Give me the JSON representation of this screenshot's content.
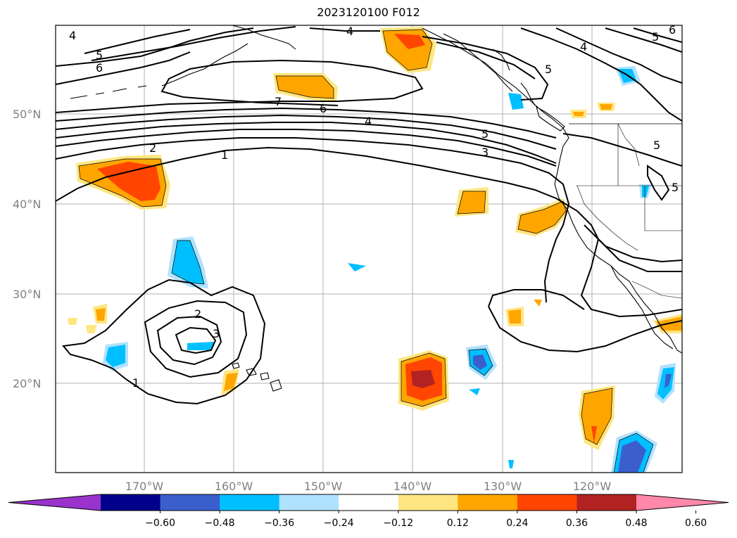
{
  "title": "2023120100 F012",
  "latitude_labels": [
    "50°N",
    "40°N",
    "30°N",
    "20°N"
  ],
  "longitude_labels": [
    "170°W",
    "160°W",
    "150°W",
    "140°W",
    "130°W",
    "120°W"
  ],
  "contour_labels": [
    "4",
    "5",
    "6",
    "4",
    "5",
    "4",
    "5",
    "5",
    "6",
    "7",
    "6",
    "4",
    "5",
    "3",
    "2",
    "1",
    "5",
    "2",
    "3",
    "1"
  ],
  "colorbar": {
    "ticks": [
      "−0.60",
      "−0.48",
      "−0.36",
      "−0.24",
      "−0.12",
      "0.12",
      "0.24",
      "0.36",
      "0.48",
      "0.60"
    ],
    "colors": [
      "#9933cc",
      "#00008b",
      "#3a5fcd",
      "#00bfff",
      "#b0e2ff",
      "#ffffff",
      "#ffe680",
      "#ffa500",
      "#ff4500",
      "#b22222",
      "#ff88aa"
    ]
  }
}
